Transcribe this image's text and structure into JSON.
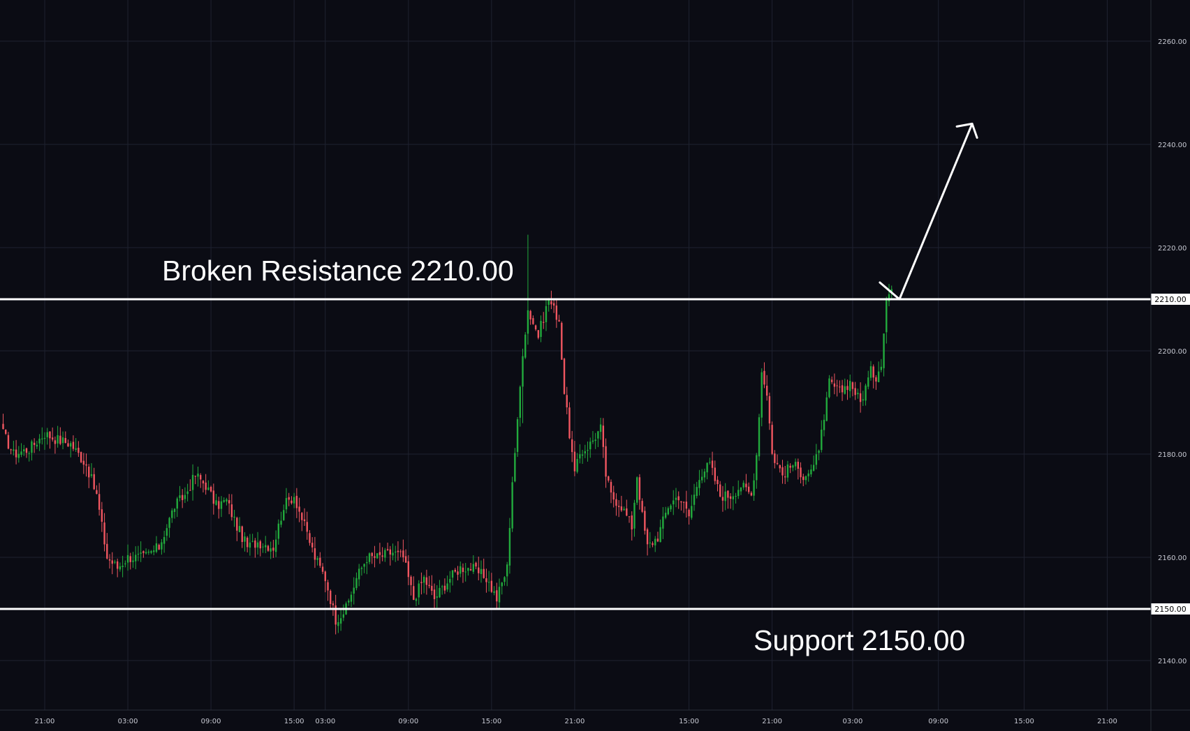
{
  "colors": {
    "background": "#0b0c14",
    "grid": "#1f2230",
    "axis_text": "#c8cad3",
    "bull": "#22ab3d",
    "bear": "#f05660",
    "level_line": "#ffffff",
    "arrow": "#ffffff"
  },
  "chart_data": {
    "type": "candlestick",
    "ylim": [
      2130,
      2265
    ],
    "y_ticks": [
      2140,
      2160,
      2180,
      2200,
      2220,
      2240,
      2260
    ],
    "y_tick_labels": [
      "2140.00",
      "2160.00",
      "2180.00",
      "2200.00",
      "2220.00",
      "2240.00",
      "2260.00"
    ],
    "x_ticks": [
      {
        "label": "21:00",
        "index": 16
      },
      {
        "label": "03:00",
        "index": 48
      },
      {
        "label": "09:00",
        "index": 80
      },
      {
        "label": "15:00",
        "index": 112
      },
      {
        "label": "03:00",
        "index": 124
      },
      {
        "label": "09:00",
        "index": 156
      },
      {
        "label": "15:00",
        "index": 188
      },
      {
        "label": "21:00",
        "index": 220
      },
      {
        "label": "15:00",
        "index": 264
      },
      {
        "label": "21:00",
        "index": 296
      },
      {
        "label": "03:00",
        "index": 327
      },
      {
        "label": "09:00",
        "index": 360
      },
      {
        "label": "15:00",
        "index": 393
      },
      {
        "label": "21:00",
        "index": 425
      }
    ],
    "candle_count": 343,
    "anchors": [
      [
        0,
        2184
      ],
      [
        4,
        2180
      ],
      [
        10,
        2181
      ],
      [
        16,
        2184
      ],
      [
        20,
        2183
      ],
      [
        26,
        2182
      ],
      [
        32,
        2178
      ],
      [
        36,
        2172
      ],
      [
        40,
        2160
      ],
      [
        44,
        2158
      ],
      [
        48,
        2160
      ],
      [
        54,
        2160
      ],
      [
        60,
        2162
      ],
      [
        66,
        2170
      ],
      [
        70,
        2172
      ],
      [
        74,
        2176
      ],
      [
        78,
        2174
      ],
      [
        82,
        2170
      ],
      [
        86,
        2171
      ],
      [
        90,
        2166
      ],
      [
        94,
        2162
      ],
      [
        98,
        2163
      ],
      [
        104,
        2162
      ],
      [
        108,
        2170
      ],
      [
        112,
        2172
      ],
      [
        116,
        2166
      ],
      [
        120,
        2160
      ],
      [
        124,
        2156
      ],
      [
        128,
        2148
      ],
      [
        132,
        2150
      ],
      [
        136,
        2156
      ],
      [
        140,
        2160
      ],
      [
        144,
        2160
      ],
      [
        150,
        2161
      ],
      [
        154,
        2160
      ],
      [
        158,
        2152
      ],
      [
        162,
        2156
      ],
      [
        166,
        2152
      ],
      [
        172,
        2156
      ],
      [
        176,
        2158
      ],
      [
        180,
        2158
      ],
      [
        186,
        2156
      ],
      [
        190,
        2152
      ],
      [
        192,
        2155
      ],
      [
        194,
        2158
      ],
      [
        196,
        2175
      ],
      [
        198,
        2186
      ],
      [
        200,
        2200
      ],
      [
        202,
        2208
      ],
      [
        206,
        2203
      ],
      [
        210,
        2210
      ],
      [
        214,
        2206
      ],
      [
        216,
        2192
      ],
      [
        218,
        2184
      ],
      [
        220,
        2176
      ],
      [
        222,
        2180
      ],
      [
        226,
        2182
      ],
      [
        230,
        2185
      ],
      [
        232,
        2176
      ],
      [
        234,
        2172
      ],
      [
        238,
        2170
      ],
      [
        242,
        2166
      ],
      [
        244,
        2176
      ],
      [
        246,
        2168
      ],
      [
        248,
        2162
      ],
      [
        252,
        2164
      ],
      [
        256,
        2170
      ],
      [
        260,
        2172
      ],
      [
        264,
        2168
      ],
      [
        268,
        2176
      ],
      [
        272,
        2178
      ],
      [
        276,
        2172
      ],
      [
        280,
        2172
      ],
      [
        284,
        2174
      ],
      [
        288,
        2172
      ],
      [
        290,
        2180
      ],
      [
        292,
        2196
      ],
      [
        294,
        2192
      ],
      [
        296,
        2180
      ],
      [
        300,
        2176
      ],
      [
        304,
        2178
      ],
      [
        308,
        2176
      ],
      [
        312,
        2177
      ],
      [
        316,
        2186
      ],
      [
        318,
        2194
      ],
      [
        322,
        2192
      ],
      [
        326,
        2194
      ],
      [
        330,
        2190
      ],
      [
        334,
        2196
      ],
      [
        336,
        2195
      ],
      [
        338,
        2198
      ],
      [
        340,
        2210
      ],
      [
        342,
        2212
      ]
    ],
    "levels": [
      {
        "name": "resistance",
        "value": 2210,
        "label": "Broken Resistance 2210.00",
        "tag": "2210.00"
      },
      {
        "name": "support",
        "value": 2150,
        "label": "Support 2150.00",
        "tag": "2150.00"
      }
    ],
    "projection_arrow": {
      "from": [
        345,
        2210
      ],
      "to": [
        373,
        2244
      ]
    }
  }
}
